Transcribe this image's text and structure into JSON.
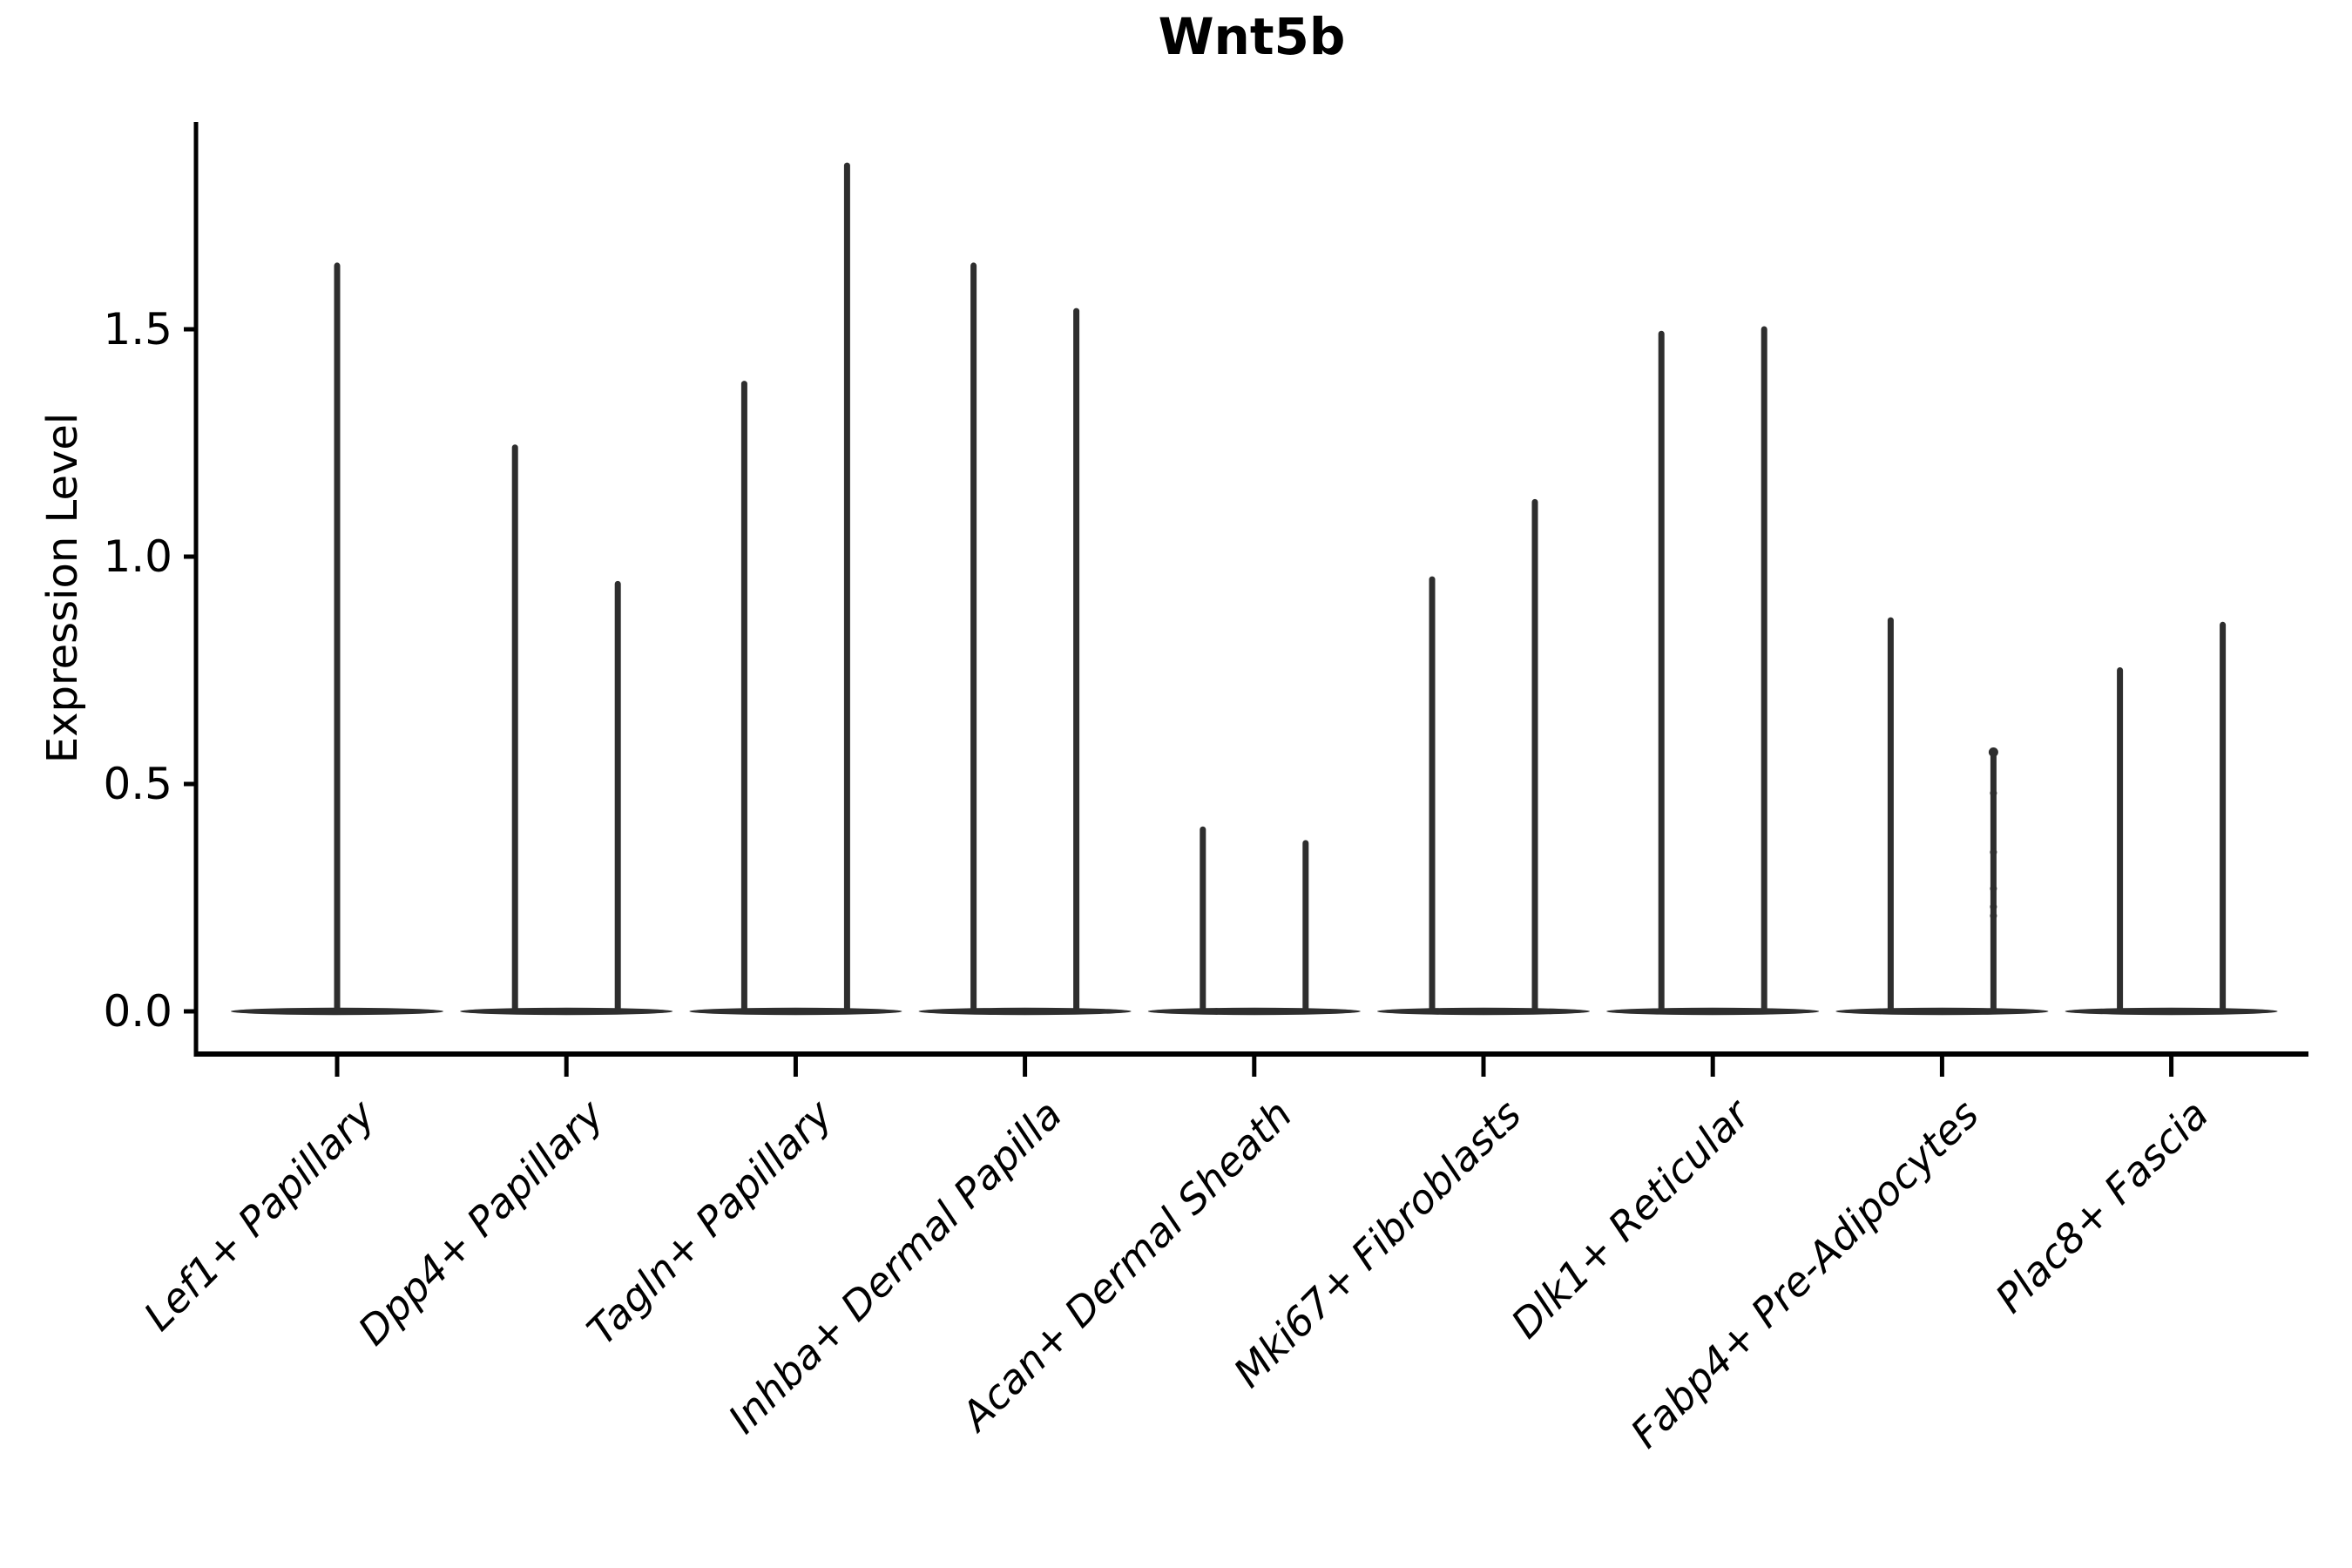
{
  "chart_data": {
    "type": "violin",
    "title": "Wnt5b",
    "xlabel": "",
    "ylabel": "Expression Level",
    "y_ticks": [
      0.0,
      0.5,
      1.0,
      1.5
    ],
    "y_tick_labels": [
      "0.0",
      "0.5",
      "1.0",
      "1.5"
    ],
    "ylim": [
      -0.09,
      1.96
    ],
    "grid": false,
    "legend": "none",
    "categories": [
      "Lef1+ Papillary",
      "Dpp4+ Papillary",
      "Tagln+ Papillary",
      "Inhba+ Dermal Papilla",
      "Acan+ Dermal Sheath",
      "Mki67+ Fibroblasts",
      "Dlk1+ Reticular",
      "Fabp4+ Pre-Adipocytes",
      "Plac8+ Fascia"
    ],
    "description": "Needle-thin violins: bulk of expression density at 0 (flat base), thin spike up to the maximum expression value. One violin for the first category, two side-by-side violins for all others.",
    "violin_max_values": [
      [
        1.64
      ],
      [
        1.24,
        0.94
      ],
      [
        1.38,
        1.86
      ],
      [
        1.64,
        1.54
      ],
      [
        0.4,
        0.37
      ],
      [
        0.95,
        1.12
      ],
      [
        1.49,
        1.5
      ],
      [
        0.86,
        0.57
      ],
      [
        0.75,
        0.85
      ]
    ],
    "jitter_points": {
      "category": "Fabp4+ Pre-Adipocytes",
      "category_index": 7,
      "violin_index": 1,
      "values": [
        0.57,
        0.48,
        0.35,
        0.27,
        0.23,
        0.21
      ]
    },
    "colors": {
      "violin_stroke": "#2e2e2e",
      "axis": "#000000",
      "text": "#000000",
      "background": "#ffffff"
    }
  }
}
